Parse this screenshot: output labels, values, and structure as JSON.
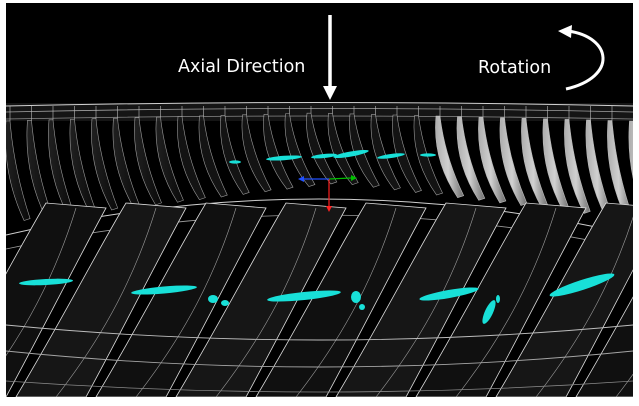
{
  "labels": {
    "axial_direction": "Axial Direction",
    "rotation": "Rotation"
  },
  "colors": {
    "background": "#000000",
    "vortex": "#18e0d8",
    "wireframe": "#c8c8c8",
    "blade": "#d0d0d0",
    "arrow": "#ffffff",
    "axis_x": "#00c000",
    "axis_y": "#ff2020",
    "axis_z": "#2050ff"
  },
  "icons": {
    "axial_arrow": "down-arrow-icon",
    "rotation_arrow": "curved-arrow-icon"
  }
}
